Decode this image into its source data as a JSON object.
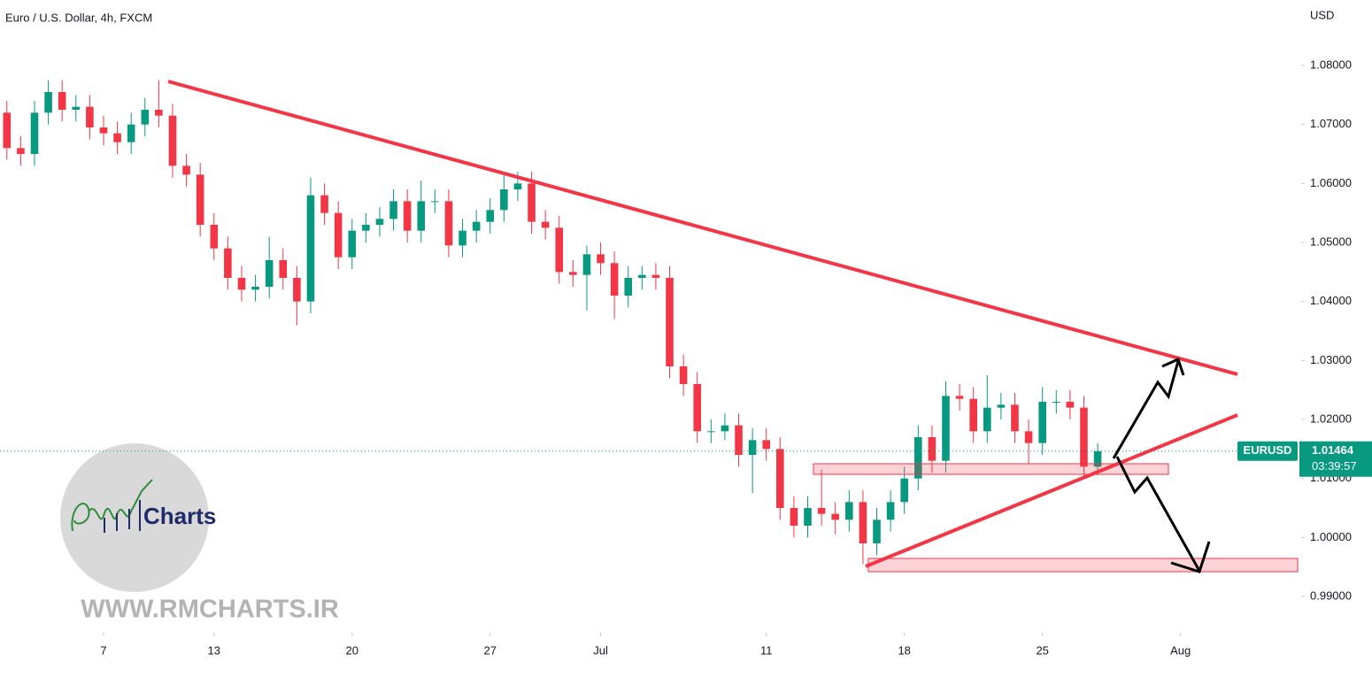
{
  "chart_data": {
    "type": "candlestick",
    "title": "Euro / U.S. Dollar, 4h, FXCM",
    "currency": "USD",
    "symbol": "EURUSD",
    "last_price": 1.01464,
    "last_price_label": "1.01464",
    "countdown": "03:39:57",
    "up_color": "#089981",
    "down_color": "#f23645",
    "x": [
      -3.5,
      -3,
      -2.5,
      -2,
      -1.5,
      -1,
      -0.5,
      0,
      0.5,
      1,
      1.5,
      2,
      2.5,
      3,
      3.5,
      4,
      4.5,
      5,
      5.5,
      6,
      6.5,
      7,
      7.5,
      8,
      8.5,
      9,
      9.5,
      10,
      10.5,
      11,
      11.5,
      12,
      12.5,
      13,
      13.5,
      14,
      14.5,
      15,
      15.5,
      16,
      16.5,
      17,
      17.5,
      18,
      18.5,
      19,
      19.5,
      20,
      20.5,
      21,
      21.5,
      22,
      22.5,
      23,
      23.5,
      24,
      24.5,
      25,
      25.5,
      26,
      26.5,
      27,
      27.5,
      28,
      28.5,
      29,
      29.5,
      30,
      30.5,
      31,
      31.5,
      32,
      32.5,
      33,
      33.5,
      34,
      34.5,
      35,
      35.5,
      36
    ],
    "open": [
      1.072,
      1.066,
      1.065,
      1.072,
      1.0755,
      1.0725,
      1.073,
      1.0695,
      1.0685,
      1.067,
      1.07,
      1.0725,
      1.0715,
      1.063,
      1.0615,
      1.053,
      1.049,
      1.044,
      1.042,
      1.0425,
      1.047,
      1.044,
      1.04,
      1.058,
      1.055,
      1.0475,
      1.052,
      1.053,
      1.054,
      1.057,
      1.052,
      1.057,
      1.057,
      1.0495,
      1.052,
      1.0535,
      1.0555,
      1.059,
      1.06,
      1.0535,
      1.0525,
      1.045,
      1.0445,
      1.048,
      1.0465,
      1.041,
      1.044,
      1.0445,
      1.044,
      1.029,
      1.026,
      1.018,
      1.018,
      1.019,
      1.014,
      1.0165,
      1.015,
      1.005,
      1.002,
      1.005,
      1.004,
      1.003,
      1.006,
      0.999,
      1.003,
      1.006,
      1.01,
      1.017,
      1.013,
      1.024,
      1.0235,
      1.018,
      1.022,
      1.0225,
      1.018,
      1.016,
      1.023,
      1.023,
      1.022,
      1.012
    ],
    "high": [
      1.074,
      1.068,
      1.074,
      1.0775,
      1.0775,
      1.075,
      1.075,
      1.0715,
      1.0705,
      1.072,
      1.0745,
      1.0775,
      1.0735,
      1.065,
      1.0635,
      1.055,
      1.051,
      1.046,
      1.0445,
      1.051,
      1.049,
      1.046,
      1.061,
      1.06,
      1.057,
      1.054,
      1.055,
      1.056,
      1.059,
      1.059,
      1.0605,
      1.059,
      1.059,
      1.054,
      1.0555,
      1.0575,
      1.0615,
      1.062,
      1.062,
      1.0555,
      1.0545,
      1.047,
      1.0495,
      1.05,
      1.0485,
      1.046,
      1.046,
      1.0465,
      1.046,
      1.031,
      1.028,
      1.02,
      1.021,
      1.021,
      1.0185,
      1.0185,
      1.017,
      1.007,
      1.007,
      1.0115,
      1.006,
      1.008,
      1.008,
      1.005,
      1.008,
      1.012,
      1.019,
      1.019,
      1.0265,
      1.026,
      1.0255,
      1.0275,
      1.0245,
      1.0245,
      1.02,
      1.0255,
      1.025,
      1.025,
      1.024,
      1.016
    ],
    "low": [
      1.064,
      1.063,
      1.063,
      1.07,
      1.0705,
      1.0705,
      1.0675,
      1.0665,
      1.065,
      1.065,
      1.068,
      1.0695,
      1.061,
      1.0595,
      1.051,
      1.047,
      1.042,
      1.04,
      1.04,
      1.0405,
      1.042,
      1.036,
      1.038,
      1.053,
      1.0455,
      1.0455,
      1.05,
      1.051,
      1.052,
      1.05,
      1.05,
      1.055,
      1.0475,
      1.0475,
      1.05,
      1.0515,
      1.0535,
      1.057,
      1.0515,
      1.0505,
      1.043,
      1.0425,
      1.0385,
      1.0445,
      1.037,
      1.039,
      1.042,
      1.042,
      1.027,
      1.024,
      1.016,
      1.016,
      1.0165,
      1.012,
      1.0075,
      1.013,
      1.003,
      1.0,
      1.0,
      1.002,
      1.0005,
      1.001,
      0.9955,
      0.997,
      1.001,
      1.004,
      1.008,
      1.011,
      1.011,
      1.0215,
      1.016,
      1.016,
      1.02,
      1.016,
      1.0125,
      1.014,
      1.021,
      1.02,
      1.01,
      1.0105
    ],
    "close": [
      1.066,
      1.065,
      1.072,
      1.0755,
      1.0725,
      1.073,
      1.0695,
      1.0685,
      1.067,
      1.07,
      1.0725,
      1.0715,
      1.063,
      1.0615,
      1.053,
      1.049,
      1.044,
      1.042,
      1.0425,
      1.047,
      1.044,
      1.04,
      1.058,
      1.055,
      1.0475,
      1.052,
      1.053,
      1.054,
      1.057,
      1.052,
      1.057,
      1.057,
      1.0495,
      1.052,
      1.0535,
      1.0555,
      1.059,
      1.06,
      1.0535,
      1.0525,
      1.045,
      1.0445,
      1.048,
      1.0465,
      1.041,
      1.044,
      1.0445,
      1.044,
      1.029,
      1.026,
      1.018,
      1.018,
      1.019,
      1.014,
      1.0165,
      1.015,
      1.005,
      1.002,
      1.005,
      1.004,
      1.003,
      1.006,
      0.999,
      1.003,
      1.006,
      1.01,
      1.017,
      1.013,
      1.024,
      1.0235,
      1.018,
      1.022,
      1.0225,
      1.018,
      1.016,
      1.023,
      1.023,
      1.022,
      1.012,
      1.0146
    ],
    "xlim": [
      -3.75,
      43.37
    ],
    "xticks": [
      {
        "value": 0,
        "label": "7"
      },
      {
        "value": 4,
        "label": "13"
      },
      {
        "value": 9,
        "label": "20"
      },
      {
        "value": 14,
        "label": "27"
      },
      {
        "value": 18,
        "label": "Jul"
      },
      {
        "value": 24,
        "label": "11"
      },
      {
        "value": 29,
        "label": "18"
      },
      {
        "value": 34,
        "label": "25"
      },
      {
        "value": 39,
        "label": "Aug"
      }
    ],
    "ylim": [
      0.98385,
      1.0911
    ],
    "yticks": [
      {
        "value": 1.08,
        "label": "1.08000"
      },
      {
        "value": 1.07,
        "label": "1.07000"
      },
      {
        "value": 1.06,
        "label": "1.06000"
      },
      {
        "value": 1.05,
        "label": "1.05000"
      },
      {
        "value": 1.04,
        "label": "1.04000"
      },
      {
        "value": 1.03,
        "label": "1.03000"
      },
      {
        "value": 1.02,
        "label": "1.02000"
      },
      {
        "value": 1.01,
        "label": "1.01000"
      },
      {
        "value": 1.0,
        "label": "1.00000"
      },
      {
        "value": 0.99,
        "label": "0.99000"
      }
    ]
  },
  "watermark": {
    "brand": "Charts",
    "url": "WWW.RMCHARTS.IR"
  }
}
